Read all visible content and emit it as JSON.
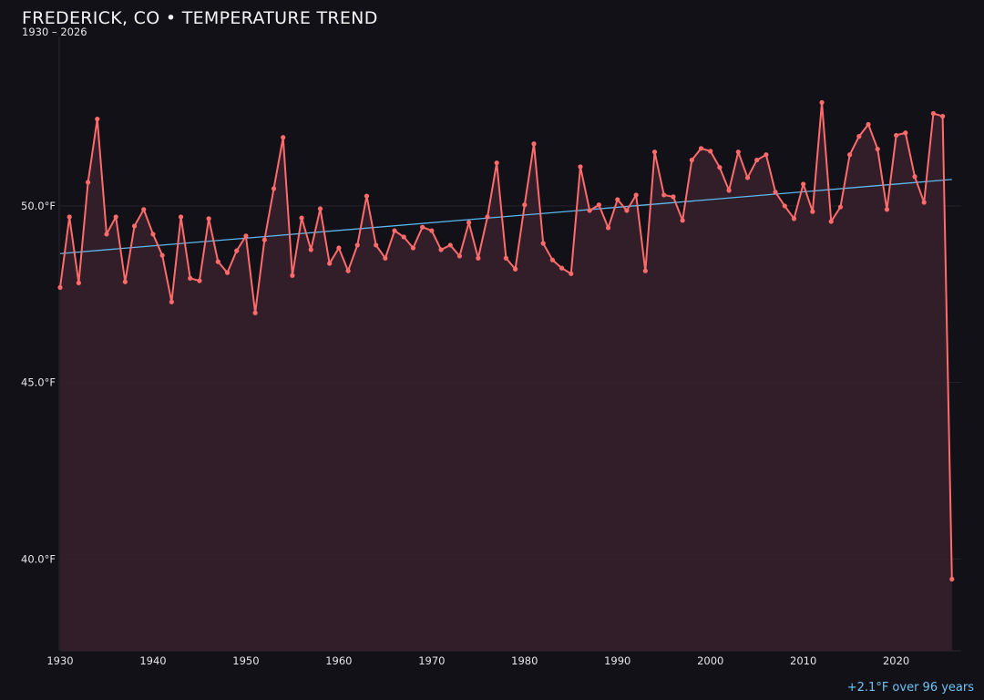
{
  "chart_data": {
    "type": "line",
    "title": "FREDERICK, CO • TEMPERATURE TREND",
    "subtitle": "1930 – 2026",
    "annotation": "+2.1°F over 96 years",
    "xlabel": "",
    "ylabel": "",
    "xlim": [
      1930,
      2027
    ],
    "ylim": [
      37.4,
      54.8
    ],
    "x_ticks": [
      1930,
      1940,
      1950,
      1960,
      1970,
      1980,
      1990,
      2000,
      2010,
      2020
    ],
    "y_ticks": [
      40.0,
      45.0,
      50.0
    ],
    "y_tick_labels": [
      "40.0°F",
      "45.0°F",
      "50.0°F"
    ],
    "grid": "horizontal",
    "colors": {
      "series": "#ff6b6b",
      "fill": "#35202a",
      "trend": "#5bb8f0",
      "background": "#121117"
    },
    "x": [
      1930,
      1931,
      1932,
      1933,
      1934,
      1935,
      1936,
      1937,
      1938,
      1939,
      1940,
      1941,
      1942,
      1943,
      1944,
      1945,
      1946,
      1947,
      1948,
      1949,
      1950,
      1951,
      1952,
      1953,
      1954,
      1955,
      1956,
      1957,
      1958,
      1959,
      1960,
      1961,
      1962,
      1963,
      1964,
      1965,
      1966,
      1967,
      1968,
      1969,
      1970,
      1971,
      1972,
      1973,
      1974,
      1975,
      1976,
      1977,
      1978,
      1979,
      1980,
      1981,
      1982,
      1983,
      1984,
      1985,
      1986,
      1987,
      1988,
      1989,
      1990,
      1991,
      1992,
      1993,
      1994,
      1995,
      1996,
      1997,
      1998,
      1999,
      2000,
      2001,
      2002,
      2003,
      2004,
      2005,
      2006,
      2007,
      2008,
      2009,
      2010,
      2011,
      2012,
      2013,
      2014,
      2015,
      2016,
      2017,
      2018,
      2019,
      2020,
      2021,
      2022,
      2023,
      2024,
      2025,
      2026
    ],
    "series": [
      {
        "values": [
          47.69,
          49.69,
          47.82,
          50.67,
          52.46,
          49.2,
          49.69,
          47.85,
          49.43,
          49.9,
          49.2,
          48.6,
          47.28,
          49.69,
          47.95,
          47.88,
          49.64,
          48.42,
          48.11,
          48.73,
          49.15,
          46.97,
          49.04,
          50.49,
          51.94,
          48.03,
          49.66,
          48.76,
          49.92,
          48.37,
          48.81,
          48.16,
          48.89,
          50.28,
          48.89,
          48.52,
          49.3,
          49.12,
          48.81,
          49.4,
          49.3,
          48.76,
          48.89,
          48.58,
          49.53,
          48.52,
          49.69,
          51.22,
          48.52,
          48.21,
          50.03,
          51.76,
          48.94,
          48.47,
          48.24,
          48.08,
          51.11,
          49.87,
          50.03,
          49.38,
          50.18,
          49.87,
          50.31,
          48.16,
          51.53,
          50.31,
          50.26,
          49.59,
          51.3,
          51.63,
          51.55,
          51.09,
          50.44,
          51.53,
          50.8,
          51.3,
          51.45,
          50.39,
          50.0,
          49.64,
          50.62,
          49.84,
          52.93,
          49.56,
          49.97,
          51.45,
          51.97,
          52.31,
          51.61,
          49.9,
          52.0,
          52.07,
          50.83,
          50.1,
          52.62,
          52.54,
          39.43
        ]
      }
    ],
    "trendline": {
      "x": [
        1930,
        2026
      ],
      "y": [
        48.65,
        50.75
      ]
    }
  }
}
